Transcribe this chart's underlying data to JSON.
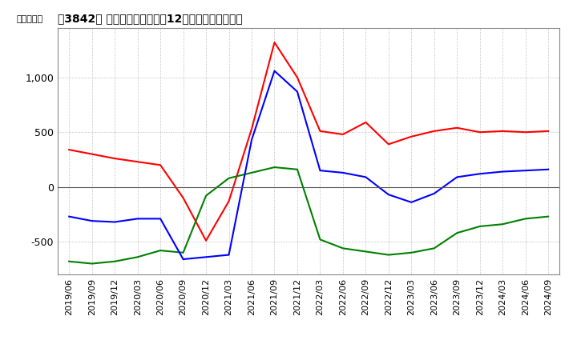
{
  "title": "［3842］ キャッシュフローの12か月移動合計の推移",
  "ylabel": "（百万円）",
  "x_labels": [
    "2019/06",
    "2019/09",
    "2019/12",
    "2020/03",
    "2020/06",
    "2020/09",
    "2020/12",
    "2021/03",
    "2021/06",
    "2021/09",
    "2021/12",
    "2022/03",
    "2022/06",
    "2022/09",
    "2022/12",
    "2023/03",
    "2023/06",
    "2023/09",
    "2023/12",
    "2024/03",
    "2024/06",
    "2024/09"
  ],
  "operating_cf": [
    340,
    300,
    260,
    230,
    200,
    -100,
    -490,
    -130,
    530,
    1320,
    1000,
    510,
    480,
    590,
    390,
    460,
    510,
    540,
    500,
    510,
    500,
    510
  ],
  "investing_cf": [
    -680,
    -700,
    -680,
    -640,
    -580,
    -600,
    -80,
    80,
    130,
    180,
    160,
    -480,
    -560,
    -590,
    -620,
    -600,
    -560,
    -420,
    -360,
    -340,
    -290,
    -270
  ],
  "free_cf": [
    -270,
    -310,
    -320,
    -290,
    -290,
    -660,
    -640,
    -620,
    430,
    1060,
    870,
    150,
    130,
    90,
    -70,
    -140,
    -60,
    90,
    120,
    140,
    150,
    160
  ],
  "operating_color": "#FF0000",
  "investing_color": "#008000",
  "free_cf_color": "#0000FF",
  "background_color": "#FFFFFF",
  "grid_color": "#AAAAAA",
  "ylim": [
    -800,
    1450
  ],
  "yticks": [
    -500,
    0,
    500,
    1000
  ]
}
